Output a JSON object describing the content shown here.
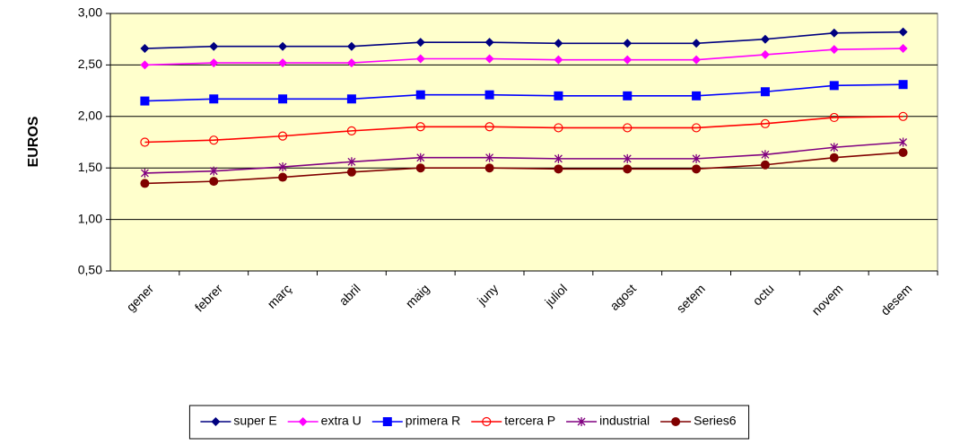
{
  "chart_data": {
    "type": "line",
    "y_label": "EUROS",
    "categories": [
      "gener",
      "febrer",
      "març",
      "abril",
      "maig",
      "juny",
      "juliol",
      "agost",
      "setem",
      "octu",
      "novem",
      "desem"
    ],
    "series": [
      {
        "name": "super    E",
        "color": "#000080",
        "marker": "diamond",
        "values": [
          2.66,
          2.68,
          2.68,
          2.68,
          2.72,
          2.72,
          2.71,
          2.71,
          2.71,
          2.75,
          2.81,
          2.82
        ]
      },
      {
        "name": "extra    U",
        "color": "#ff00ff",
        "marker": "diamond",
        "values": [
          2.5,
          2.52,
          2.52,
          2.52,
          2.56,
          2.56,
          2.55,
          2.55,
          2.55,
          2.6,
          2.65,
          2.66
        ]
      },
      {
        "name": "primera  R",
        "color": "#0000ff",
        "marker": "square",
        "values": [
          2.15,
          2.17,
          2.17,
          2.17,
          2.21,
          2.21,
          2.2,
          2.2,
          2.2,
          2.24,
          2.3,
          2.31
        ]
      },
      {
        "name": "tercera  P",
        "color": "#ff0000",
        "marker": "circle-open",
        "values": [
          1.75,
          1.77,
          1.81,
          1.86,
          1.9,
          1.9,
          1.89,
          1.89,
          1.89,
          1.93,
          1.99,
          2.0
        ]
      },
      {
        "name": "industrial",
        "color": "#800080",
        "marker": "star",
        "values": [
          1.45,
          1.47,
          1.51,
          1.56,
          1.6,
          1.6,
          1.59,
          1.59,
          1.59,
          1.63,
          1.7,
          1.75
        ]
      },
      {
        "name": "Series6",
        "color": "#800000",
        "marker": "circle",
        "values": [
          1.35,
          1.37,
          1.41,
          1.46,
          1.5,
          1.5,
          1.49,
          1.49,
          1.49,
          1.53,
          1.6,
          1.65
        ]
      }
    ],
    "ylim": [
      0.5,
      3.0
    ],
    "yticks": [
      {
        "value": 0.5,
        "label": "0,50"
      },
      {
        "value": 1.0,
        "label": "1,00"
      },
      {
        "value": 1.5,
        "label": "1,50"
      },
      {
        "value": 2.0,
        "label": "2,00"
      },
      {
        "value": 2.5,
        "label": "2,50"
      },
      {
        "value": 3.0,
        "label": "3,00"
      }
    ],
    "grid": true,
    "plot_background": "#ffffcc",
    "legend": "bottom"
  }
}
